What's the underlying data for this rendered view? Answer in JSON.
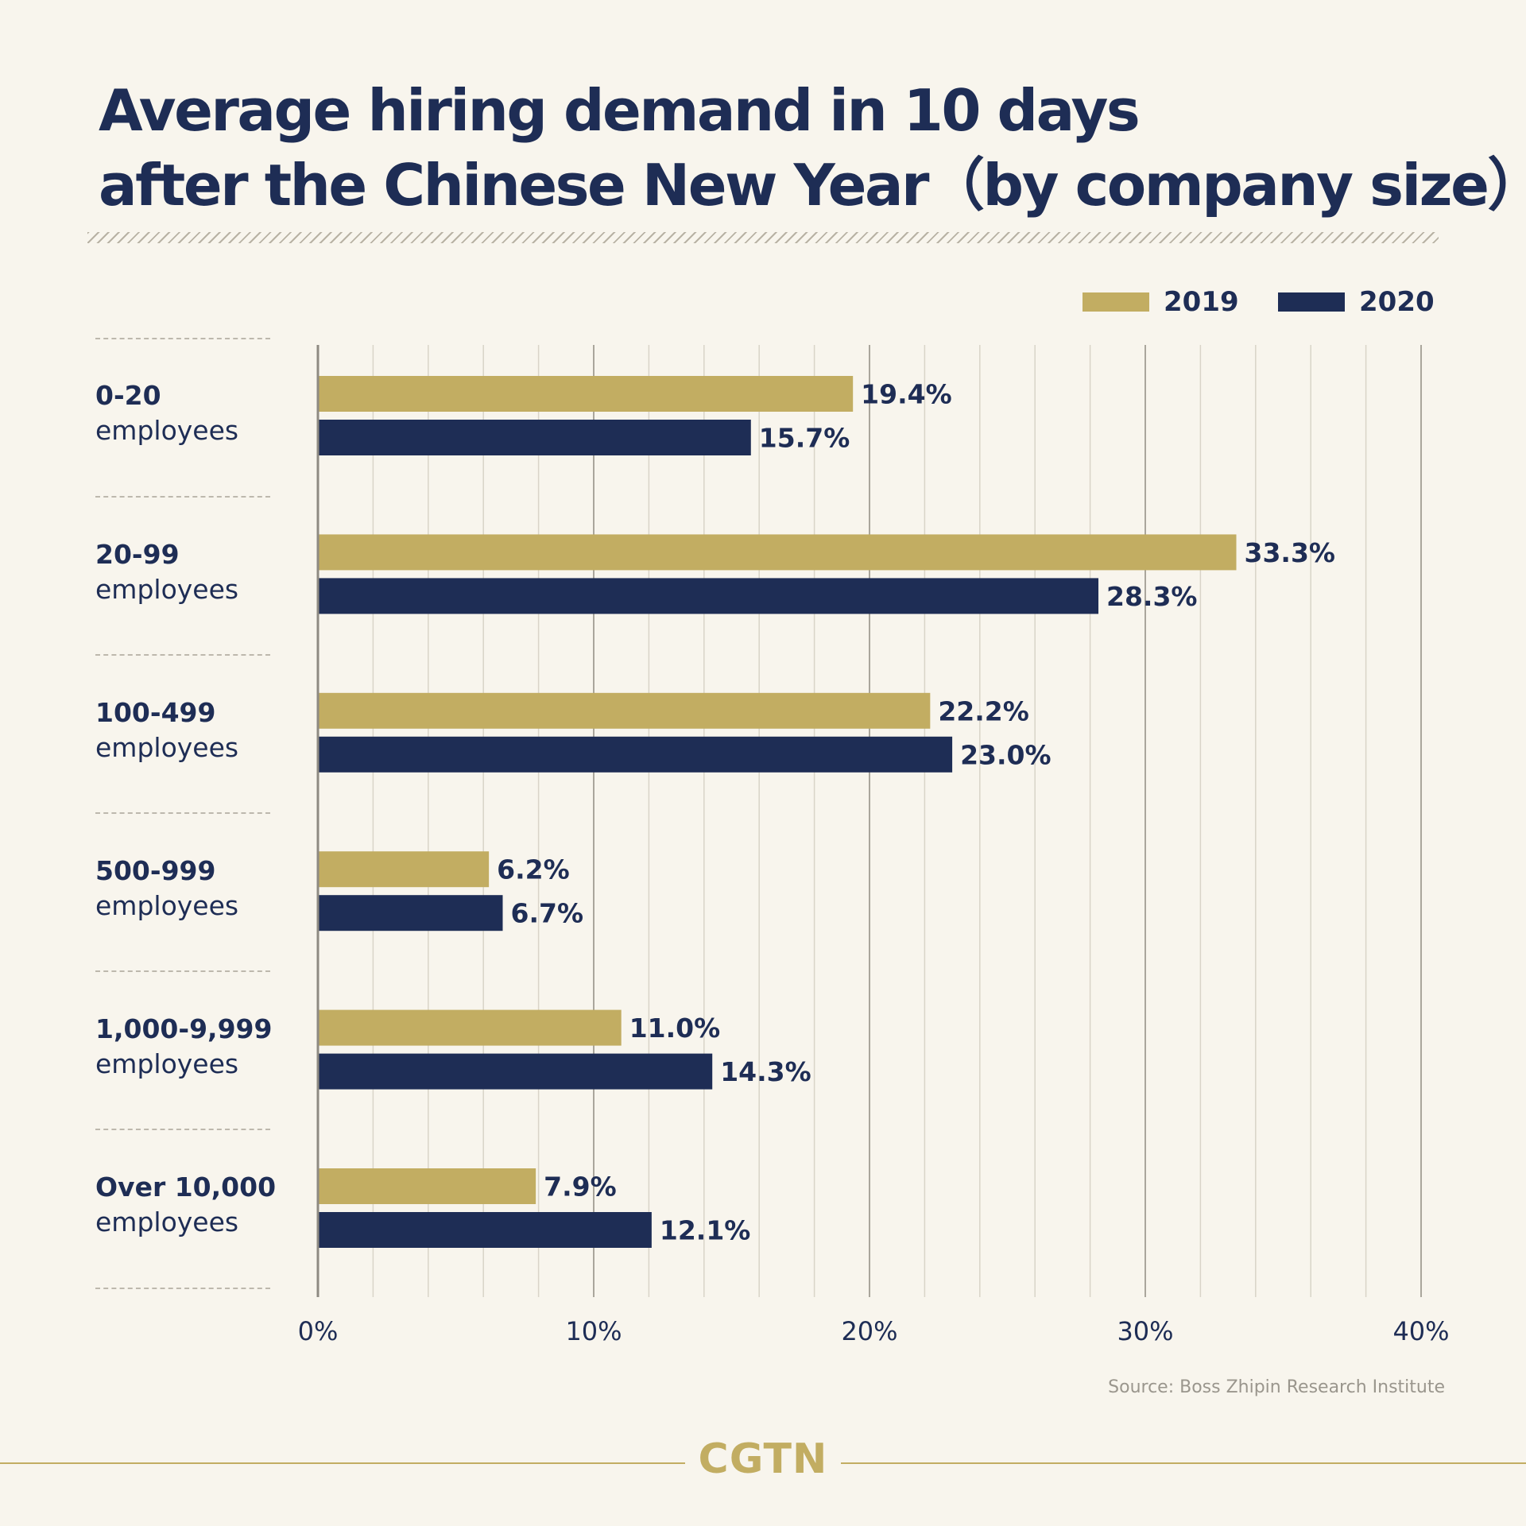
{
  "header": {
    "title_line1": "Average hiring demand in 10 days",
    "title_line2": "after the Chinese New Year（by company size）"
  },
  "legend": {
    "s2019": "2019",
    "s2020": "2020"
  },
  "colors": {
    "s2019": "#c2ad62",
    "s2020": "#1e2d55",
    "background": "#f8f5ed",
    "text": "#1e2d55"
  },
  "categories": [
    {
      "size": "0-20",
      "unit": "employees"
    },
    {
      "size": "20-99",
      "unit": "employees"
    },
    {
      "size": "100-499",
      "unit": "employees"
    },
    {
      "size": "500-999",
      "unit": "employees"
    },
    {
      "size": "1,000-9,999",
      "unit": "employees"
    },
    {
      "size": "Over 10,000",
      "unit": "employees"
    }
  ],
  "chart_data": {
    "type": "bar",
    "orientation": "horizontal",
    "title": "Average hiring demand in 10 days after the Chinese New Year（by company size）",
    "categories": [
      "0-20 employees",
      "20-99 employees",
      "100-499 employees",
      "500-999 employees",
      "1,000-9,999 employees",
      "Over 10,000 employees"
    ],
    "series": [
      {
        "name": "2019",
        "values": [
          19.4,
          33.3,
          22.2,
          6.2,
          11.0,
          7.9
        ],
        "labels": [
          "19.4%",
          "33.3%",
          "22.2%",
          "6.2%",
          "11.0%",
          "7.9%"
        ]
      },
      {
        "name": "2020",
        "values": [
          15.7,
          28.3,
          23.0,
          6.7,
          14.3,
          12.1
        ],
        "labels": [
          "15.7%",
          "28.3%",
          "23.0%",
          "6.7%",
          "14.3%",
          "12.1%"
        ]
      }
    ],
    "xlim": [
      0,
      40
    ],
    "xticks": [
      "0%",
      "10%",
      "20%",
      "30%",
      "40%"
    ],
    "legend_position": "top-right",
    "grid": true
  },
  "footer": {
    "source": "Source: Boss Zhipin Research Institute",
    "logo": "CGTN"
  }
}
